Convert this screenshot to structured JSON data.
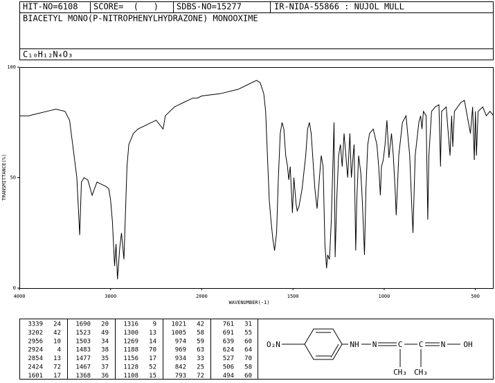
{
  "header": {
    "hit_no": "HIT-NO=6108",
    "score": "SCORE=  (   )",
    "sdbs_no": "SDBS-NO=15277",
    "source": "IR-NIDA-55866 : NUJOL MULL",
    "compound": "BIACETYL MONO(P-NITROPHENYLHYDRAZONE) MONOOXIME",
    "formula": "C₁₀H₁₂N₄O₃"
  },
  "chart_data": {
    "type": "line",
    "color": "#000000",
    "x_label": "WAVENUMBER(-1)",
    "y_label": "TRANSMITTANCE(%)",
    "xlim": [
      4000,
      400
    ],
    "ylim": [
      0,
      100
    ],
    "xticks": [
      4000,
      3000,
      2000,
      1500,
      1000,
      500
    ],
    "yticks": [
      0,
      50,
      100
    ],
    "x_scale": {
      "break": 2000,
      "factor": 2
    },
    "x": [
      4000,
      3900,
      3800,
      3700,
      3600,
      3500,
      3450,
      3400,
      3370,
      3339,
      3320,
      3290,
      3250,
      3202,
      3150,
      3100,
      3050,
      3020,
      3000,
      2980,
      2956,
      2940,
      2924,
      2900,
      2880,
      2854,
      2840,
      2820,
      2800,
      2750,
      2700,
      2600,
      2500,
      2424,
      2400,
      2300,
      2200,
      2100,
      2050,
      2000,
      1900,
      1800,
      1750,
      1700,
      1680,
      1660,
      1650,
      1640,
      1630,
      1620,
      1610,
      1601,
      1590,
      1580,
      1570,
      1560,
      1550,
      1540,
      1530,
      1523,
      1515,
      1503,
      1495,
      1483,
      1477,
      1467,
      1450,
      1430,
      1420,
      1410,
      1400,
      1380,
      1368,
      1355,
      1345,
      1335,
      1325,
      1316,
      1310,
      1300,
      1290,
      1280,
      1275,
      1269,
      1260,
      1250,
      1240,
      1230,
      1220,
      1210,
      1200,
      1188,
      1180,
      1170,
      1165,
      1156,
      1150,
      1140,
      1128,
      1120,
      1108,
      1100,
      1090,
      1080,
      1060,
      1040,
      1030,
      1021,
      1015,
      1005,
      995,
      985,
      974,
      969,
      960,
      950,
      940,
      934,
      920,
      900,
      880,
      860,
      850,
      842,
      830,
      810,
      800,
      793,
      785,
      770,
      761,
      755,
      740,
      720,
      700,
      691,
      685,
      660,
      639,
      630,
      624,
      615,
      580,
      560,
      527,
      515,
      506,
      500,
      494,
      485,
      460,
      440,
      420,
      400
    ],
    "values": [
      78,
      78,
      79,
      80,
      81,
      80,
      76,
      60,
      50,
      24,
      48,
      50,
      49,
      42,
      48,
      47,
      46,
      45,
      40,
      30,
      10,
      20,
      4,
      18,
      25,
      13,
      30,
      55,
      65,
      70,
      72,
      74,
      76,
      72,
      78,
      82,
      84,
      86,
      86,
      87,
      88,
      90,
      92,
      94,
      93,
      88,
      80,
      60,
      40,
      30,
      22,
      17,
      25,
      50,
      70,
      75,
      72,
      60,
      55,
      49,
      55,
      34,
      50,
      38,
      35,
      37,
      45,
      60,
      72,
      75,
      70,
      45,
      36,
      50,
      60,
      55,
      20,
      9,
      15,
      13,
      30,
      60,
      75,
      14,
      40,
      60,
      65,
      55,
      70,
      60,
      50,
      70,
      50,
      60,
      65,
      17,
      40,
      60,
      52,
      40,
      15,
      45,
      65,
      70,
      72,
      65,
      55,
      42,
      55,
      58,
      65,
      76,
      59,
      63,
      70,
      60,
      45,
      33,
      60,
      75,
      78,
      60,
      40,
      25,
      60,
      75,
      78,
      72,
      80,
      78,
      31,
      60,
      80,
      82,
      83,
      55,
      80,
      82,
      60,
      78,
      64,
      80,
      84,
      85,
      70,
      82,
      58,
      80,
      60,
      80,
      82,
      78,
      80,
      78
    ]
  },
  "peak_table": {
    "columns": [
      [
        [
          3339,
          24
        ],
        [
          3202,
          42
        ],
        [
          2956,
          10
        ],
        [
          2924,
          4
        ],
        [
          2854,
          13
        ],
        [
          2424,
          72
        ],
        [
          1601,
          17
        ]
      ],
      [
        [
          1690,
          20
        ],
        [
          1523,
          49
        ],
        [
          1503,
          34
        ],
        [
          1483,
          38
        ],
        [
          1477,
          35
        ],
        [
          1467,
          37
        ],
        [
          1368,
          36
        ]
      ],
      [
        [
          1316,
          9
        ],
        [
          1300,
          13
        ],
        [
          1269,
          14
        ],
        [
          1188,
          70
        ],
        [
          1156,
          17
        ],
        [
          1128,
          52
        ],
        [
          1108,
          15
        ]
      ],
      [
        [
          1021,
          42
        ],
        [
          1005,
          58
        ],
        [
          974,
          59
        ],
        [
          969,
          63
        ],
        [
          934,
          33
        ],
        [
          842,
          25
        ],
        [
          793,
          72
        ]
      ],
      [
        [
          761,
          31
        ],
        [
          691,
          55
        ],
        [
          639,
          60
        ],
        [
          624,
          64
        ],
        [
          527,
          70
        ],
        [
          506,
          58
        ],
        [
          494,
          60
        ]
      ]
    ]
  },
  "structure": {
    "labels": [
      "O₂N",
      "NH",
      "N",
      "C",
      "C",
      "N",
      "OH",
      "CH₃",
      "CH₃"
    ]
  }
}
